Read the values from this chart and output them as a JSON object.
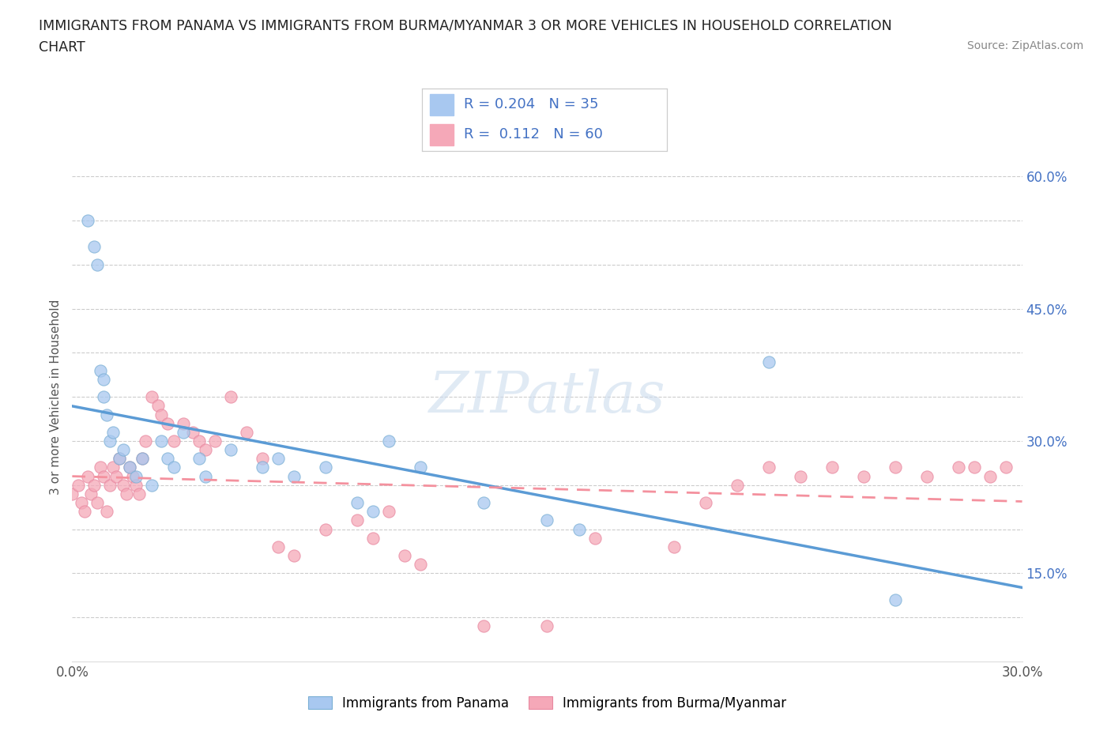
{
  "title_line1": "IMMIGRANTS FROM PANAMA VS IMMIGRANTS FROM BURMA/MYANMAR 3 OR MORE VEHICLES IN HOUSEHOLD CORRELATION",
  "title_line2": "CHART",
  "source": "Source: ZipAtlas.com",
  "ylabel": "3 or more Vehicles in Household",
  "xlim": [
    0.0,
    0.3
  ],
  "ylim": [
    0.05,
    0.65
  ],
  "panama_color": "#a8c8f0",
  "panama_edge_color": "#7aafd4",
  "burma_color": "#f5a8b8",
  "burma_edge_color": "#e888a0",
  "panama_line_color": "#5b9bd5",
  "burma_line_color": "#f4919e",
  "R_panama": 0.204,
  "N_panama": 35,
  "R_burma": 0.112,
  "N_burma": 60,
  "legend_label_panama": "Immigrants from Panama",
  "legend_label_burma": "Immigrants from Burma/Myanmar",
  "watermark": "ZIPatlas",
  "panama_x": [
    0.005,
    0.007,
    0.008,
    0.009,
    0.01,
    0.01,
    0.011,
    0.012,
    0.013,
    0.015,
    0.016,
    0.018,
    0.02,
    0.022,
    0.025,
    0.028,
    0.03,
    0.032,
    0.035,
    0.04,
    0.042,
    0.05,
    0.06,
    0.065,
    0.07,
    0.08,
    0.09,
    0.095,
    0.1,
    0.11,
    0.13,
    0.15,
    0.16,
    0.22,
    0.26
  ],
  "panama_y": [
    0.55,
    0.52,
    0.5,
    0.38,
    0.35,
    0.37,
    0.33,
    0.3,
    0.31,
    0.28,
    0.29,
    0.27,
    0.26,
    0.28,
    0.25,
    0.3,
    0.28,
    0.27,
    0.31,
    0.28,
    0.26,
    0.29,
    0.27,
    0.28,
    0.26,
    0.27,
    0.23,
    0.22,
    0.3,
    0.27,
    0.23,
    0.21,
    0.2,
    0.39,
    0.12
  ],
  "burma_x": [
    0.0,
    0.002,
    0.003,
    0.004,
    0.005,
    0.006,
    0.007,
    0.008,
    0.009,
    0.01,
    0.011,
    0.012,
    0.013,
    0.014,
    0.015,
    0.016,
    0.017,
    0.018,
    0.019,
    0.02,
    0.021,
    0.022,
    0.023,
    0.025,
    0.027,
    0.028,
    0.03,
    0.032,
    0.035,
    0.038,
    0.04,
    0.042,
    0.045,
    0.05,
    0.055,
    0.06,
    0.065,
    0.07,
    0.08,
    0.09,
    0.095,
    0.1,
    0.105,
    0.11,
    0.13,
    0.15,
    0.165,
    0.19,
    0.2,
    0.21,
    0.22,
    0.23,
    0.24,
    0.25,
    0.26,
    0.27,
    0.28,
    0.285,
    0.29,
    0.295
  ],
  "burma_y": [
    0.24,
    0.25,
    0.23,
    0.22,
    0.26,
    0.24,
    0.25,
    0.23,
    0.27,
    0.26,
    0.22,
    0.25,
    0.27,
    0.26,
    0.28,
    0.25,
    0.24,
    0.27,
    0.26,
    0.25,
    0.24,
    0.28,
    0.3,
    0.35,
    0.34,
    0.33,
    0.32,
    0.3,
    0.32,
    0.31,
    0.3,
    0.29,
    0.3,
    0.35,
    0.31,
    0.28,
    0.18,
    0.17,
    0.2,
    0.21,
    0.19,
    0.22,
    0.17,
    0.16,
    0.09,
    0.09,
    0.19,
    0.18,
    0.23,
    0.25,
    0.27,
    0.26,
    0.27,
    0.26,
    0.27,
    0.26,
    0.27,
    0.27,
    0.26,
    0.27
  ]
}
